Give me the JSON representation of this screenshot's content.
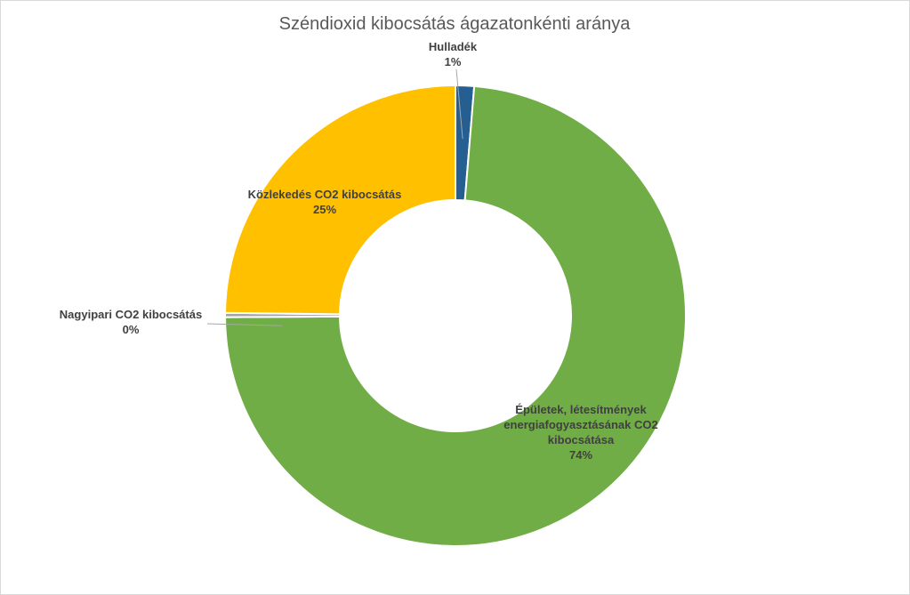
{
  "chart_data": {
    "type": "doughnut",
    "title": "Széndioxid kibocsátás ágazatonkénti aránya",
    "categories": [
      "Hulladék",
      "Épületek, létesítmények energiafogyasztásának CO2 kibocsátása",
      "Nagyipari CO2 kibocsátás",
      "Közlekedés CO2 kibocsátás"
    ],
    "values": [
      1.3,
      73.6,
      0.3,
      24.8
    ],
    "percent_labels": [
      "1%",
      "74%",
      "0%",
      "25%"
    ],
    "colors": [
      "#255e91",
      "#70ad47",
      "#a5a5a5",
      "#ffc000"
    ],
    "legend": "none",
    "label_lines": [
      [
        "Hulladék",
        "1%"
      ],
      [
        "Épületek, létesítmények",
        "energiafogyasztásának CO2",
        "kibocsátása",
        "74%"
      ],
      [
        "Nagyipari CO2 kibocsátás",
        "0%"
      ],
      [
        "Közlekedés CO2 kibocsátás",
        "25%"
      ]
    ]
  }
}
